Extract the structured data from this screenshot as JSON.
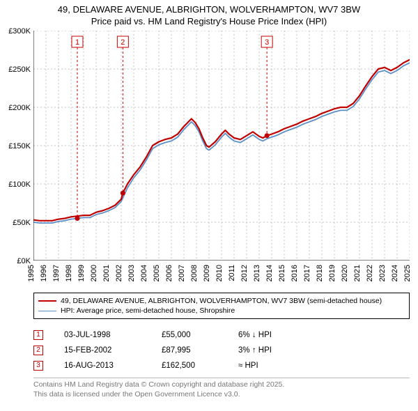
{
  "title_line1": "49, DELAWARE AVENUE, ALBRIGHTON, WOLVERHAMPTON, WV7 3BW",
  "title_line2": "Price paid vs. HM Land Registry's House Price Index (HPI)",
  "chart": {
    "type": "line",
    "background_color": "#ffffff",
    "grid_color": "#888888",
    "axis_color": "#000000",
    "label_fontsize": 11,
    "title_fontsize": 13,
    "x_ticks": [
      1995,
      1996,
      1997,
      1998,
      1999,
      2000,
      2001,
      2002,
      2003,
      2004,
      2005,
      2006,
      2007,
      2008,
      2009,
      2010,
      2011,
      2012,
      2013,
      2014,
      2015,
      2016,
      2017,
      2018,
      2019,
      2020,
      2021,
      2022,
      2023,
      2024,
      2025
    ],
    "y_min": 0,
    "y_max": 300000,
    "y_tick_step": 50000,
    "y_tick_format": "£{K}K",
    "series": [
      {
        "name": "red",
        "color": "#c00000",
        "width": 2.2,
        "data": [
          [
            1995.0,
            53
          ],
          [
            1995.5,
            52
          ],
          [
            1996.0,
            52
          ],
          [
            1996.5,
            52
          ],
          [
            1997.0,
            54
          ],
          [
            1997.5,
            55
          ],
          [
            1998.0,
            57
          ],
          [
            1998.5,
            58
          ],
          [
            1999.0,
            59
          ],
          [
            1999.5,
            59
          ],
          [
            2000.0,
            63
          ],
          [
            2000.5,
            65
          ],
          [
            2001.0,
            68
          ],
          [
            2001.5,
            72
          ],
          [
            2002.0,
            80
          ],
          [
            2002.13,
            88
          ],
          [
            2002.5,
            100
          ],
          [
            2003.0,
            112
          ],
          [
            2003.5,
            122
          ],
          [
            2004.0,
            135
          ],
          [
            2004.5,
            150
          ],
          [
            2005.0,
            155
          ],
          [
            2005.5,
            158
          ],
          [
            2006.0,
            160
          ],
          [
            2006.5,
            165
          ],
          [
            2007.0,
            175
          ],
          [
            2007.3,
            180
          ],
          [
            2007.6,
            185
          ],
          [
            2007.9,
            180
          ],
          [
            2008.2,
            172
          ],
          [
            2008.5,
            160
          ],
          [
            2008.8,
            150
          ],
          [
            2009.0,
            148
          ],
          [
            2009.5,
            155
          ],
          [
            2010.0,
            165
          ],
          [
            2010.3,
            170
          ],
          [
            2010.6,
            165
          ],
          [
            2011.0,
            160
          ],
          [
            2011.5,
            158
          ],
          [
            2012.0,
            163
          ],
          [
            2012.5,
            168
          ],
          [
            2013.0,
            162
          ],
          [
            2013.3,
            160
          ],
          [
            2013.62,
            163
          ],
          [
            2014.0,
            165
          ],
          [
            2014.5,
            168
          ],
          [
            2015.0,
            172
          ],
          [
            2015.5,
            175
          ],
          [
            2016.0,
            178
          ],
          [
            2016.5,
            182
          ],
          [
            2017.0,
            185
          ],
          [
            2017.5,
            188
          ],
          [
            2018.0,
            192
          ],
          [
            2018.5,
            195
          ],
          [
            2019.0,
            198
          ],
          [
            2019.5,
            200
          ],
          [
            2020.0,
            200
          ],
          [
            2020.5,
            205
          ],
          [
            2021.0,
            215
          ],
          [
            2021.5,
            228
          ],
          [
            2022.0,
            240
          ],
          [
            2022.5,
            250
          ],
          [
            2023.0,
            252
          ],
          [
            2023.5,
            248
          ],
          [
            2024.0,
            252
          ],
          [
            2024.5,
            258
          ],
          [
            2025.0,
            262
          ]
        ]
      },
      {
        "name": "blue",
        "color": "#5b8fc7",
        "width": 1.8,
        "data": [
          [
            1995.0,
            50
          ],
          [
            1995.5,
            49
          ],
          [
            1996.0,
            49
          ],
          [
            1996.5,
            49
          ],
          [
            1997.0,
            51
          ],
          [
            1997.5,
            52
          ],
          [
            1998.0,
            54
          ],
          [
            1998.5,
            55
          ],
          [
            1999.0,
            56
          ],
          [
            1999.5,
            56
          ],
          [
            2000.0,
            60
          ],
          [
            2000.5,
            62
          ],
          [
            2001.0,
            65
          ],
          [
            2001.5,
            69
          ],
          [
            2002.0,
            77
          ],
          [
            2002.5,
            95
          ],
          [
            2003.0,
            108
          ],
          [
            2003.5,
            118
          ],
          [
            2004.0,
            131
          ],
          [
            2004.5,
            146
          ],
          [
            2005.0,
            151
          ],
          [
            2005.5,
            154
          ],
          [
            2006.0,
            156
          ],
          [
            2006.5,
            161
          ],
          [
            2007.0,
            171
          ],
          [
            2007.3,
            176
          ],
          [
            2007.6,
            181
          ],
          [
            2007.9,
            176
          ],
          [
            2008.2,
            168
          ],
          [
            2008.5,
            156
          ],
          [
            2008.8,
            146
          ],
          [
            2009.0,
            144
          ],
          [
            2009.5,
            151
          ],
          [
            2010.0,
            161
          ],
          [
            2010.3,
            166
          ],
          [
            2010.6,
            161
          ],
          [
            2011.0,
            156
          ],
          [
            2011.5,
            154
          ],
          [
            2012.0,
            159
          ],
          [
            2012.5,
            164
          ],
          [
            2013.0,
            158
          ],
          [
            2013.3,
            156
          ],
          [
            2013.62,
            159
          ],
          [
            2014.0,
            161
          ],
          [
            2014.5,
            164
          ],
          [
            2015.0,
            168
          ],
          [
            2015.5,
            171
          ],
          [
            2016.0,
            174
          ],
          [
            2016.5,
            178
          ],
          [
            2017.0,
            181
          ],
          [
            2017.5,
            184
          ],
          [
            2018.0,
            188
          ],
          [
            2018.5,
            191
          ],
          [
            2019.0,
            194
          ],
          [
            2019.5,
            196
          ],
          [
            2020.0,
            196
          ],
          [
            2020.5,
            201
          ],
          [
            2021.0,
            211
          ],
          [
            2021.5,
            224
          ],
          [
            2022.0,
            236
          ],
          [
            2022.5,
            246
          ],
          [
            2023.0,
            248
          ],
          [
            2023.5,
            244
          ],
          [
            2024.0,
            248
          ],
          [
            2024.5,
            254
          ],
          [
            2025.0,
            258
          ]
        ]
      }
    ],
    "sale_markers": [
      {
        "num": "1",
        "x": 1998.5,
        "y": 55,
        "date": "03-JUL-1998",
        "price": "£55,000",
        "diff": "6% ↓ HPI"
      },
      {
        "num": "2",
        "x": 2002.13,
        "y": 88,
        "date": "15-FEB-2002",
        "price": "£87,995",
        "diff": "3% ↑ HPI"
      },
      {
        "num": "3",
        "x": 2013.62,
        "y": 163,
        "date": "16-AUG-2013",
        "price": "£162,500",
        "diff": "≈ HPI"
      }
    ]
  },
  "legend": {
    "items": [
      {
        "color": "#c00000",
        "width": 2.5,
        "label": "49, DELAWARE AVENUE, ALBRIGHTON, WOLVERHAMPTON, WV7 3BW (semi-detached house)"
      },
      {
        "color": "#5b8fc7",
        "width": 1.8,
        "label": "HPI: Average price, semi-detached house, Shropshire"
      }
    ]
  },
  "footer": {
    "line1": "Contains HM Land Registry data © Crown copyright and database right 2025.",
    "line2": "This data is licensed under the Open Government Licence v3.0."
  }
}
